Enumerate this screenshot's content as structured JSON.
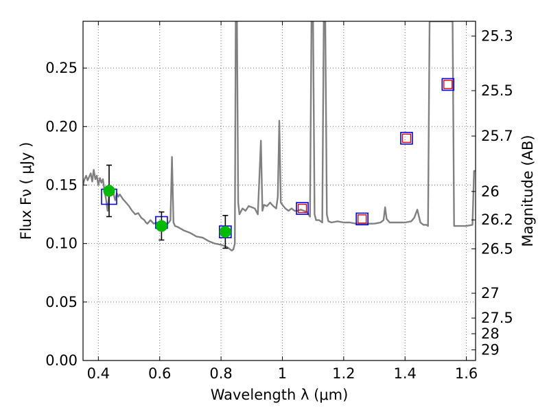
{
  "chart_data": {
    "type": "line",
    "xlabel": "Wavelength  λ (μm)",
    "ylabel": "Flux  Fν  ( μJy )",
    "ylabel_right": "Magnitude (AB)",
    "xlim": [
      0.35,
      1.63
    ],
    "ylim": [
      0.0,
      0.29
    ],
    "grid": true,
    "x_ticks": [
      {
        "value": 0.4,
        "label": "0.4"
      },
      {
        "value": 0.6,
        "label": "0.6"
      },
      {
        "value": 0.8,
        "label": "0.8"
      },
      {
        "value": 1.0,
        "label": "1"
      },
      {
        "value": 1.2,
        "label": "1.2"
      },
      {
        "value": 1.4,
        "label": "1.4"
      },
      {
        "value": 1.6,
        "label": "1.6"
      }
    ],
    "y_ticks": [
      {
        "value": 0.0,
        "label": "0.00"
      },
      {
        "value": 0.05,
        "label": "0.05"
      },
      {
        "value": 0.1,
        "label": "0.10"
      },
      {
        "value": 0.15,
        "label": "0.15"
      },
      {
        "value": 0.2,
        "label": "0.20"
      },
      {
        "value": 0.25,
        "label": "0.25"
      }
    ],
    "right_ticks": [
      {
        "flux": 0.2774,
        "label": "25.3"
      },
      {
        "flux": 0.2307,
        "label": "25.5"
      },
      {
        "flux": 0.1919,
        "label": "25.7"
      },
      {
        "flux": 0.1445,
        "label": "26"
      },
      {
        "flux": 0.1202,
        "label": "26.2"
      },
      {
        "flux": 0.0955,
        "label": "26.5"
      },
      {
        "flux": 0.0575,
        "label": "27"
      },
      {
        "flux": 0.0363,
        "label": "27.5"
      },
      {
        "flux": 0.0229,
        "label": "28"
      },
      {
        "flux": 0.0091,
        "label": "29"
      }
    ],
    "series": [
      {
        "name": "Model SED",
        "kind": "line",
        "color": "#808080",
        "x": [
          0.35,
          0.355,
          0.36,
          0.365,
          0.37,
          0.375,
          0.38,
          0.385,
          0.39,
          0.395,
          0.4,
          0.405,
          0.41,
          0.415,
          0.42,
          0.425,
          0.43,
          0.435,
          0.44,
          0.445,
          0.45,
          0.455,
          0.46,
          0.465,
          0.47,
          0.48,
          0.49,
          0.5,
          0.51,
          0.52,
          0.53,
          0.54,
          0.55,
          0.555,
          0.56,
          0.57,
          0.58,
          0.59,
          0.6,
          0.61,
          0.62,
          0.63,
          0.635,
          0.64,
          0.645,
          0.65,
          0.66,
          0.68,
          0.7,
          0.72,
          0.74,
          0.76,
          0.78,
          0.8,
          0.82,
          0.835,
          0.84,
          0.845,
          0.848,
          0.852,
          0.856,
          0.86,
          0.87,
          0.88,
          0.89,
          0.9,
          0.91,
          0.92,
          0.93,
          0.935,
          0.94,
          0.95,
          0.96,
          0.97,
          0.98,
          0.985,
          0.99,
          0.995,
          1.0,
          1.01,
          1.02,
          1.03,
          1.04,
          1.05,
          1.06,
          1.07,
          1.08,
          1.09,
          1.095,
          1.1,
          1.105,
          1.11,
          1.12,
          1.13,
          1.135,
          1.14,
          1.145,
          1.15,
          1.16,
          1.18,
          1.2,
          1.22,
          1.24,
          1.26,
          1.28,
          1.3,
          1.32,
          1.33,
          1.335,
          1.34,
          1.35,
          1.4,
          1.42,
          1.43,
          1.44,
          1.45,
          1.46,
          1.47,
          1.475,
          1.48,
          1.49,
          1.5,
          1.505,
          1.51,
          1.515,
          1.52,
          1.53,
          1.54,
          1.55,
          1.555,
          1.56,
          1.57,
          1.58,
          1.6,
          1.62,
          1.625,
          1.63
        ],
        "y": [
          0.15,
          0.155,
          0.158,
          0.154,
          0.157,
          0.16,
          0.153,
          0.163,
          0.155,
          0.158,
          0.15,
          0.156,
          0.152,
          0.155,
          0.145,
          0.138,
          0.128,
          0.142,
          0.145,
          0.148,
          0.142,
          0.137,
          0.143,
          0.14,
          0.142,
          0.138,
          0.135,
          0.132,
          0.128,
          0.125,
          0.126,
          0.122,
          0.12,
          0.118,
          0.117,
          0.12,
          0.117,
          0.118,
          0.116,
          0.118,
          0.116,
          0.118,
          0.12,
          0.174,
          0.118,
          0.115,
          0.114,
          0.111,
          0.109,
          0.106,
          0.105,
          0.102,
          0.1,
          0.099,
          0.097,
          0.094,
          0.095,
          0.1,
          0.29,
          0.29,
          0.135,
          0.125,
          0.13,
          0.128,
          0.132,
          0.131,
          0.13,
          0.125,
          0.188,
          0.128,
          0.133,
          0.132,
          0.135,
          0.132,
          0.13,
          0.14,
          0.205,
          0.135,
          0.133,
          0.13,
          0.128,
          0.13,
          0.128,
          0.128,
          0.129,
          0.128,
          0.127,
          0.123,
          0.29,
          0.29,
          0.125,
          0.12,
          0.12,
          0.118,
          0.29,
          0.29,
          0.125,
          0.119,
          0.118,
          0.119,
          0.118,
          0.118,
          0.117,
          0.117,
          0.117,
          0.117,
          0.118,
          0.12,
          0.131,
          0.121,
          0.118,
          0.118,
          0.119,
          0.122,
          0.129,
          0.118,
          0.116,
          0.116,
          0.115,
          0.29,
          0.29,
          0.29,
          0.29,
          0.29,
          0.29,
          0.29,
          0.29,
          0.29,
          0.29,
          0.29,
          0.115,
          0.115,
          0.115,
          0.115,
          0.116,
          0.162,
          0.162
        ]
      },
      {
        "name": "Observed photometry",
        "kind": "scatter",
        "marker": "circle",
        "color": "#00bb00",
        "x": [
          0.435,
          0.606,
          0.814
        ],
        "y": [
          0.145,
          0.115,
          0.11
        ],
        "yerr": [
          0.022,
          0.012,
          0.014
        ]
      },
      {
        "name": "Model photometry",
        "kind": "scatter",
        "marker": "blue-square",
        "color": "#0000ee",
        "x": [
          0.435,
          0.606,
          0.814,
          1.065,
          1.26,
          1.405,
          1.54
        ],
        "y": [
          0.14,
          0.118,
          0.11,
          0.13,
          0.121,
          0.19,
          0.236
        ]
      },
      {
        "name": "Band flux",
        "kind": "scatter",
        "marker": "red-square",
        "color": "#dd0000",
        "x": [
          1.065,
          1.26,
          1.405,
          1.54
        ],
        "y": [
          0.13,
          0.121,
          0.19,
          0.236
        ]
      }
    ]
  }
}
